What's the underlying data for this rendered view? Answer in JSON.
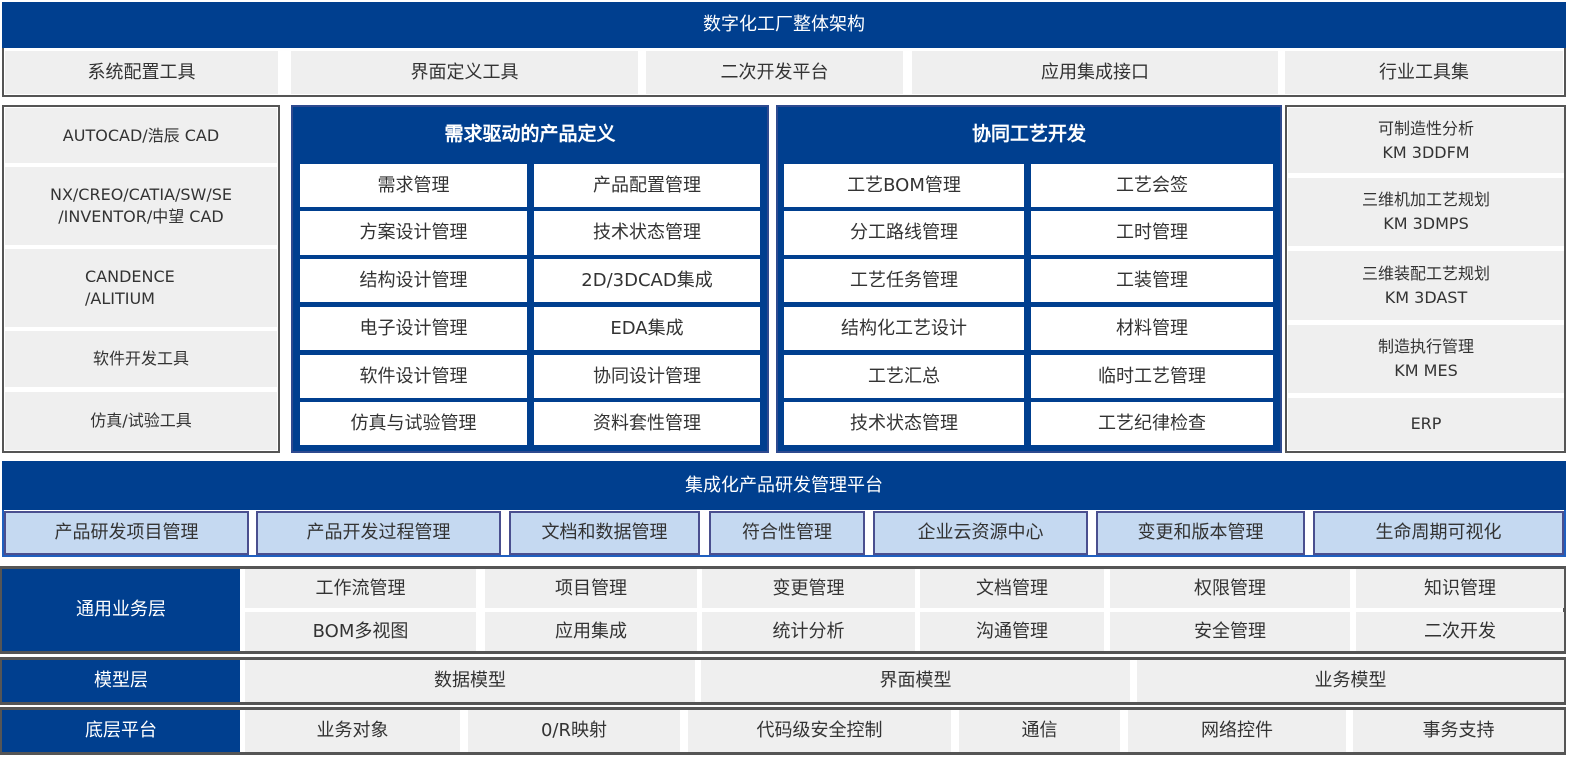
{
  "title": "数字化工厂整体架构",
  "tools": [
    "系统配置工具",
    "界面定义工具",
    "二次开发平台",
    "应用集成接口",
    "行业工具集"
  ],
  "left_tools": [
    "AUTOCAD/浩辰 CAD",
    "NX/CREO/CATIA/SW/SE\n/INVENTOR/中望 CAD",
    "CANDENCE\n/ALITIUM",
    "软件开发工具",
    "仿真/试验工具"
  ],
  "product_definition": {
    "title": "需求驱动的产品定义",
    "items": [
      "需求管理",
      "产品配置管理",
      "方案设计管理",
      "技术状态管理",
      "结构设计管理",
      "2D/3DCAD集成",
      "电子设计管理",
      "EDA集成",
      "软件设计管理",
      "协同设计管理",
      "仿真与试验管理",
      "资料套性管理"
    ]
  },
  "process_development": {
    "title": "协同工艺开发",
    "items": [
      "工艺BOM管理",
      "工艺会签",
      "分工路线管理",
      "工时管理",
      "工艺任务管理",
      "工装管理",
      "结构化工艺设计",
      "材料管理",
      "工艺汇总",
      "临时工艺管理",
      "技术状态管理",
      "工艺纪律检查"
    ]
  },
  "right_tools": [
    "可制造性分析\nKM 3DDFM",
    "三维机加工艺规划\nKM 3DMPS",
    "三维装配工艺规划\nKM 3DAST",
    "制造执行管理\nKM MES",
    "ERP"
  ],
  "platform": {
    "title": "集成化产品研发管理平台",
    "items": [
      "产品研发项目管理",
      "产品开发过程管理",
      "文档和数据管理",
      "符合性管理",
      "企业云资源中心",
      "变更和版本管理",
      "生命周期可视化"
    ]
  },
  "business_layer": {
    "label": "通用业务层",
    "items": [
      "工作流管理",
      "项目管理",
      "变更管理",
      "文档管理",
      "权限管理",
      "知识管理",
      "BOM多视图",
      "应用集成",
      "统计分析",
      "沟通管理",
      "安全管理",
      "二次开发"
    ]
  },
  "model_layer": {
    "label": "模型层",
    "items": [
      "数据模型",
      "界面模型",
      "业务模型"
    ]
  },
  "base_layer": {
    "label": "底层平台",
    "items": [
      "业务对象",
      "0/R映射",
      "代码级安全控制",
      "通信",
      "网络控件",
      "事务支持"
    ]
  },
  "colors": {
    "dark_blue": "#003f8f",
    "light_blue": "#c5d9f1",
    "gray": "#efefef",
    "border": "#555555"
  }
}
